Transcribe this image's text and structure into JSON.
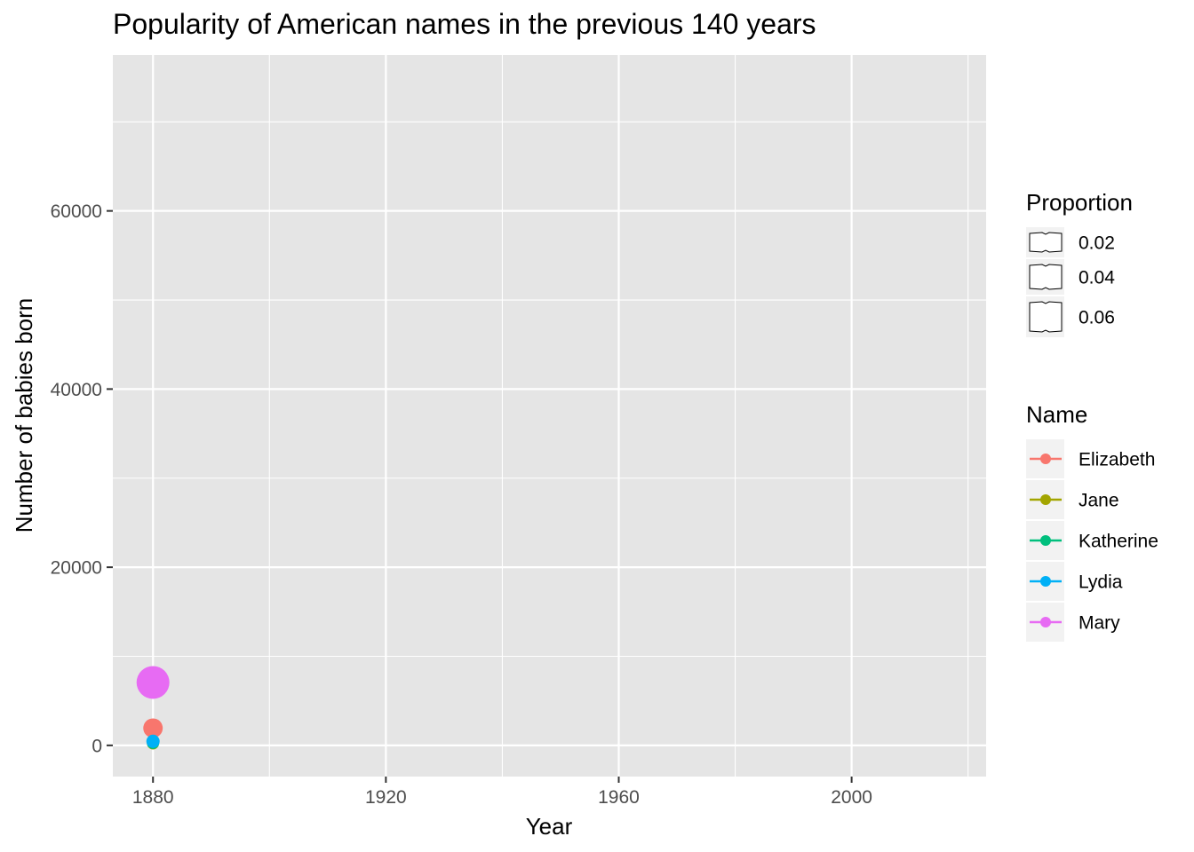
{
  "chart_data": {
    "type": "scatter",
    "title": "Popularity of American names in the previous 140 years",
    "xlabel": "Year",
    "ylabel": "Number of babies born",
    "xlim": [
      1873.1,
      2023.1
    ],
    "ylim": [
      -3500,
      77500
    ],
    "x_ticks": [
      1880,
      1920,
      1960,
      2000
    ],
    "x_tick_labels": [
      "1880",
      "1920",
      "1960",
      "2000"
    ],
    "x_minor_ticks": [
      1900,
      1940,
      1980,
      2020
    ],
    "y_ticks": [
      0,
      20000,
      40000,
      60000
    ],
    "y_tick_labels": [
      "0",
      "20000",
      "40000",
      "60000"
    ],
    "y_minor_ticks": [
      10000,
      30000,
      50000,
      70000
    ],
    "grid": true,
    "legend_position": "right",
    "size_legend": {
      "title": "Proportion",
      "entries": [
        {
          "label": "0.02",
          "value": 0.02
        },
        {
          "label": "0.04",
          "value": 0.04
        },
        {
          "label": "0.06",
          "value": 0.06
        }
      ]
    },
    "color_legend": {
      "title": "Name"
    },
    "series": [
      {
        "name": "Elizabeth",
        "color": "#F8766D",
        "points": [
          {
            "x": 1880,
            "y": 1939,
            "proportion": 0.0199
          }
        ]
      },
      {
        "name": "Jane",
        "color": "#A3A500",
        "points": [
          {
            "x": 1880,
            "y": 215,
            "proportion": 0.0022
          }
        ]
      },
      {
        "name": "Katherine",
        "color": "#00BF7D",
        "points": [
          {
            "x": 1880,
            "y": 288,
            "proportion": 0.003
          }
        ]
      },
      {
        "name": "Lydia",
        "color": "#00B0F6",
        "points": [
          {
            "x": 1880,
            "y": 460,
            "proportion": 0.0047
          }
        ]
      },
      {
        "name": "Mary",
        "color": "#E76BF3",
        "points": [
          {
            "x": 1880,
            "y": 7065,
            "proportion": 0.0724
          }
        ]
      }
    ]
  }
}
